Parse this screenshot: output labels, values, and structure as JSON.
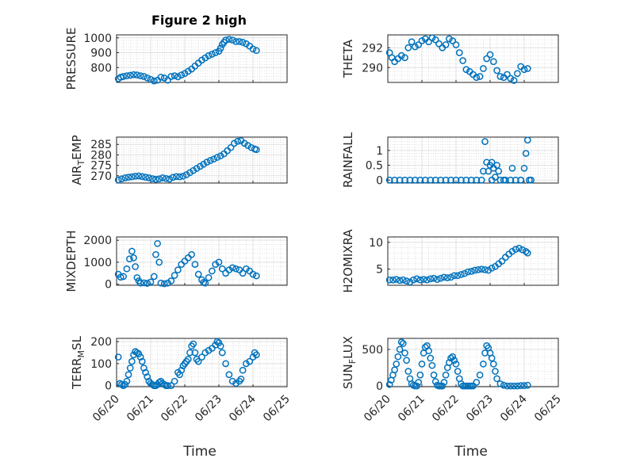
{
  "figure": {
    "title": "Figure 2 high",
    "xlabel": "Time",
    "marker_color": "#0072BD",
    "x_ticks": [
      "06/20",
      "06/21",
      "06/22",
      "06/23",
      "06/24",
      "06/25"
    ]
  },
  "chart_data": [
    {
      "id": "pressure",
      "type": "scatter",
      "ylabel": "PRESSURE",
      "yticks": [
        800,
        900,
        1000
      ],
      "ylim": [
        700,
        1020
      ],
      "x": [
        0.05,
        0.12,
        0.2,
        0.3,
        0.4,
        0.5,
        0.6,
        0.7,
        0.8,
        0.9,
        1.0,
        1.1,
        1.2,
        1.3,
        1.4,
        1.5,
        1.6,
        1.7,
        1.8,
        1.9,
        2.0,
        2.1,
        2.2,
        2.3,
        2.4,
        2.5,
        2.6,
        2.7,
        2.8,
        2.9,
        3.0,
        3.05,
        3.1,
        3.15,
        3.2,
        3.3,
        3.4,
        3.5,
        3.6,
        3.7,
        3.8,
        3.9,
        4.0,
        4.1
      ],
      "y": [
        725,
        735,
        740,
        745,
        748,
        752,
        750,
        745,
        740,
        730,
        720,
        710,
        715,
        735,
        730,
        715,
        740,
        745,
        738,
        750,
        760,
        775,
        790,
        810,
        830,
        850,
        865,
        880,
        890,
        900,
        910,
        930,
        955,
        970,
        985,
        990,
        985,
        975,
        975,
        970,
        960,
        945,
        925,
        915
      ]
    },
    {
      "id": "theta",
      "type": "scatter",
      "ylabel": "THETA",
      "yticks": [
        290,
        292
      ],
      "ylim": [
        288.5,
        293.3
      ],
      "x": [
        0.05,
        0.12,
        0.2,
        0.3,
        0.4,
        0.5,
        0.6,
        0.7,
        0.8,
        0.9,
        1.0,
        1.1,
        1.2,
        1.3,
        1.4,
        1.5,
        1.6,
        1.7,
        1.8,
        1.9,
        2.0,
        2.1,
        2.2,
        2.3,
        2.4,
        2.5,
        2.6,
        2.7,
        2.8,
        2.9,
        3.0,
        3.1,
        3.2,
        3.3,
        3.4,
        3.5,
        3.6,
        3.7,
        3.8,
        3.9,
        4.0,
        4.1
      ],
      "y": [
        291.5,
        291.0,
        290.6,
        290.9,
        291.2,
        291.0,
        292.0,
        292.6,
        292.1,
        292.3,
        292.7,
        292.9,
        292.6,
        293.0,
        292.8,
        292.4,
        292.0,
        292.3,
        292.9,
        292.7,
        292.3,
        291.5,
        290.7,
        289.8,
        289.6,
        289.3,
        289.0,
        289.1,
        289.9,
        290.9,
        291.3,
        290.6,
        289.7,
        289.1,
        289.0,
        289.3,
        288.9,
        288.7,
        289.4,
        290.1,
        289.8,
        289.9
      ]
    },
    {
      "id": "air_temp",
      "type": "scatter",
      "ylabel": "AIR",
      "ylabel_sub": "T",
      "ylabel_after": "EMP",
      "yticks": [
        270,
        275,
        280,
        285
      ],
      "ylim": [
        266.5,
        288.5
      ],
      "x": [
        0.05,
        0.15,
        0.25,
        0.35,
        0.45,
        0.55,
        0.65,
        0.75,
        0.85,
        0.95,
        1.05,
        1.15,
        1.25,
        1.35,
        1.45,
        1.55,
        1.65,
        1.75,
        1.85,
        1.95,
        2.05,
        2.15,
        2.25,
        2.35,
        2.45,
        2.55,
        2.65,
        2.75,
        2.85,
        2.95,
        3.05,
        3.15,
        3.25,
        3.35,
        3.45,
        3.55,
        3.65,
        3.75,
        3.85,
        3.95,
        4.05,
        4.1
      ],
      "y": [
        268.0,
        268.5,
        269.0,
        269.3,
        269.5,
        269.8,
        269.9,
        269.6,
        269.3,
        269.0,
        268.6,
        268.3,
        268.5,
        269.0,
        268.7,
        268.4,
        269.2,
        269.6,
        269.5,
        269.8,
        270.5,
        271.5,
        272.5,
        273.5,
        274.5,
        275.5,
        276.5,
        277.3,
        278.0,
        278.8,
        279.5,
        280.5,
        282.0,
        283.5,
        285.5,
        286.5,
        286.8,
        285.5,
        284.5,
        283.5,
        282.8,
        282.5
      ]
    },
    {
      "id": "rainfall",
      "type": "scatter",
      "ylabel": "RAINFALL",
      "yticks": [
        0,
        0.5,
        1
      ],
      "yticklabels": [
        "0",
        "0.5",
        "1"
      ],
      "ylim": [
        -0.1,
        1.45
      ],
      "x": [
        0.05,
        0.2,
        0.35,
        0.5,
        0.65,
        0.8,
        0.95,
        1.1,
        1.25,
        1.4,
        1.55,
        1.7,
        1.85,
        2.0,
        2.15,
        2.3,
        2.45,
        2.6,
        2.75,
        2.8,
        2.85,
        2.9,
        2.95,
        3.0,
        3.05,
        3.1,
        3.15,
        3.2,
        3.25,
        3.3,
        3.45,
        3.6,
        3.75,
        3.9,
        4.0,
        4.05,
        4.1,
        4.15,
        4.2,
        3.05,
        3.4,
        3.65,
        3.9
      ],
      "y": [
        0,
        0,
        0,
        0,
        0,
        0,
        0,
        0,
        0,
        0,
        0,
        0,
        0,
        0,
        0,
        0,
        0,
        0,
        0,
        0.3,
        1.3,
        0.6,
        0.3,
        0.5,
        0.6,
        0.4,
        0.1,
        0.5,
        0.3,
        0,
        0,
        0,
        0,
        0,
        0.4,
        0.9,
        1.35,
        0,
        0,
        0,
        0,
        0.4,
        0
      ]
    },
    {
      "id": "mixdepth",
      "type": "scatter",
      "ylabel": "MIXDEPTH",
      "yticks": [
        0,
        1000,
        2000
      ],
      "ylim": [
        -50,
        2150
      ],
      "x": [
        0.05,
        0.12,
        0.2,
        0.3,
        0.38,
        0.45,
        0.5,
        0.55,
        0.6,
        0.65,
        0.7,
        0.8,
        0.9,
        1.0,
        1.1,
        1.15,
        1.2,
        1.25,
        1.3,
        1.4,
        1.5,
        1.6,
        1.7,
        1.8,
        1.9,
        2.0,
        2.1,
        2.2,
        2.3,
        2.4,
        2.5,
        2.55,
        2.6,
        2.7,
        2.8,
        2.9,
        3.0,
        3.1,
        3.2,
        3.3,
        3.4,
        3.5,
        3.6,
        3.7,
        3.8,
        3.9,
        4.0,
        4.1
      ],
      "y": [
        450,
        320,
        350,
        700,
        1150,
        1500,
        1200,
        800,
        300,
        150,
        50,
        60,
        40,
        100,
        350,
        1350,
        1850,
        1000,
        50,
        20,
        50,
        150,
        400,
        650,
        900,
        1050,
        1200,
        1350,
        900,
        450,
        200,
        80,
        50,
        300,
        600,
        900,
        1000,
        700,
        500,
        650,
        750,
        700,
        650,
        500,
        700,
        600,
        450,
        380
      ]
    },
    {
      "id": "h2omixra",
      "type": "scatter",
      "ylabel": "H2OMIXRA",
      "yticks": [
        5,
        10
      ],
      "ylim": [
        2.0,
        11.0
      ],
      "x": [
        0.05,
        0.15,
        0.25,
        0.35,
        0.45,
        0.55,
        0.65,
        0.75,
        0.85,
        0.95,
        1.05,
        1.15,
        1.25,
        1.35,
        1.45,
        1.55,
        1.65,
        1.75,
        1.85,
        1.95,
        2.05,
        2.15,
        2.25,
        2.35,
        2.45,
        2.55,
        2.65,
        2.75,
        2.85,
        2.95,
        3.05,
        3.15,
        3.25,
        3.35,
        3.45,
        3.55,
        3.65,
        3.75,
        3.85,
        3.95,
        4.05,
        4.1
      ],
      "y": [
        3.0,
        3.0,
        3.1,
        2.9,
        3.0,
        2.8,
        2.6,
        3.0,
        3.2,
        3.0,
        3.1,
        3.0,
        3.2,
        3.3,
        3.1,
        3.3,
        3.5,
        3.4,
        3.5,
        3.8,
        3.8,
        4.0,
        4.2,
        4.5,
        4.6,
        4.8,
        4.9,
        5.0,
        4.9,
        4.8,
        5.2,
        5.5,
        6.0,
        6.5,
        7.2,
        7.8,
        8.3,
        8.7,
        8.9,
        8.6,
        8.3,
        8.0
      ]
    },
    {
      "id": "terr_msl",
      "type": "scatter",
      "ylabel": "TERR",
      "ylabel_sub": "M",
      "ylabel_after": "SL",
      "yticks": [
        0,
        100,
        200
      ],
      "ylim": [
        -5,
        215
      ],
      "x": [
        0.05,
        0.1,
        0.15,
        0.2,
        0.25,
        0.3,
        0.35,
        0.4,
        0.45,
        0.5,
        0.55,
        0.6,
        0.65,
        0.7,
        0.75,
        0.8,
        0.85,
        0.9,
        0.95,
        1.0,
        1.05,
        1.1,
        1.15,
        1.2,
        1.25,
        1.3,
        1.35,
        1.4,
        1.45,
        1.5,
        1.6,
        1.7,
        1.8,
        1.85,
        1.9,
        1.95,
        2.0,
        2.05,
        2.1,
        2.15,
        2.2,
        2.25,
        2.3,
        2.35,
        2.4,
        2.5,
        2.6,
        2.7,
        2.8,
        2.9,
        2.95,
        3.0,
        3.05,
        3.1,
        3.2,
        3.3,
        3.4,
        3.5,
        3.6,
        3.65,
        3.7,
        3.8,
        3.9,
        4.0,
        4.05,
        4.1
      ],
      "y": [
        130,
        10,
        5,
        0,
        5,
        20,
        50,
        80,
        110,
        140,
        155,
        150,
        145,
        130,
        110,
        80,
        60,
        40,
        20,
        10,
        5,
        0,
        0,
        5,
        15,
        20,
        10,
        5,
        0,
        0,
        0,
        20,
        60,
        50,
        70,
        90,
        100,
        110,
        120,
        150,
        180,
        190,
        150,
        120,
        110,
        130,
        150,
        160,
        170,
        185,
        200,
        195,
        180,
        150,
        100,
        50,
        20,
        10,
        20,
        30,
        70,
        100,
        110,
        130,
        150,
        140
      ]
    },
    {
      "id": "sun_flux",
      "type": "scatter",
      "ylabel": "SUN",
      "ylabel_sub": "F",
      "ylabel_after": "LUX",
      "yticks": [
        0,
        500
      ],
      "ylim": [
        -10,
        650
      ],
      "x": [
        0.05,
        0.1,
        0.15,
        0.2,
        0.25,
        0.3,
        0.35,
        0.4,
        0.45,
        0.5,
        0.55,
        0.6,
        0.65,
        0.7,
        0.75,
        0.8,
        0.85,
        0.9,
        0.95,
        1.0,
        1.05,
        1.1,
        1.15,
        1.2,
        1.25,
        1.3,
        1.35,
        1.4,
        1.45,
        1.5,
        1.55,
        1.6,
        1.65,
        1.7,
        1.75,
        1.8,
        1.85,
        1.9,
        1.95,
        2.0,
        2.05,
        2.1,
        2.15,
        2.2,
        2.25,
        2.3,
        2.35,
        2.4,
        2.45,
        2.5,
        2.6,
        2.7,
        2.8,
        2.85,
        2.9,
        2.95,
        3.0,
        3.05,
        3.1,
        3.15,
        3.2,
        3.3,
        3.4,
        3.5,
        3.6,
        3.7,
        3.8,
        3.9,
        4.0,
        4.1
      ],
      "y": [
        20,
        80,
        150,
        220,
        300,
        400,
        500,
        600,
        580,
        450,
        350,
        200,
        100,
        30,
        10,
        0,
        0,
        50,
        150,
        300,
        450,
        530,
        550,
        480,
        380,
        280,
        150,
        60,
        10,
        0,
        0,
        0,
        50,
        150,
        250,
        320,
        380,
        400,
        350,
        300,
        200,
        100,
        30,
        0,
        0,
        0,
        0,
        0,
        0,
        0,
        50,
        150,
        300,
        450,
        550,
        520,
        450,
        380,
        300,
        200,
        100,
        30,
        10,
        0,
        0,
        0,
        0,
        5,
        5,
        10
      ]
    }
  ]
}
